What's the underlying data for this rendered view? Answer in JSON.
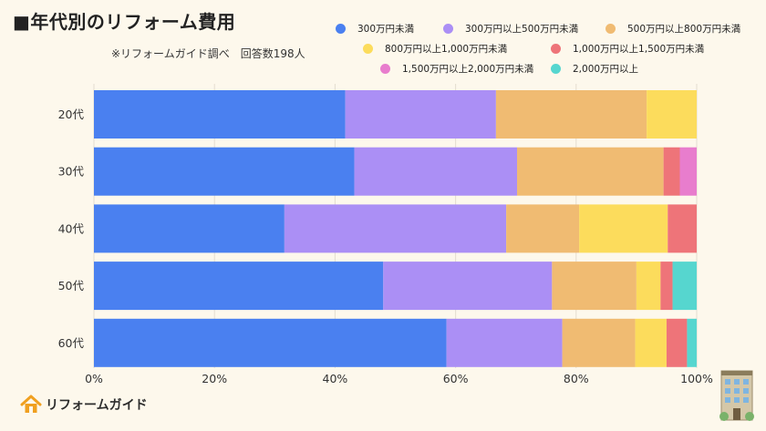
{
  "header": {
    "title": "■年代別のリフォーム費用",
    "subtitle": "※リフォームガイド調べ　回答数198人"
  },
  "brand": {
    "logo_text": "リフォームガイド"
  },
  "chart_data": {
    "type": "bar",
    "orientation": "horizontal",
    "stacked": "percent",
    "title": "■年代別のリフォーム費用",
    "subtitle": "※リフォームガイド調べ　回答数198人",
    "categories": [
      "20代",
      "30代",
      "40代",
      "50代",
      "60代"
    ],
    "xlim": [
      0,
      100
    ],
    "x_ticks": [
      "0%",
      "20%",
      "40%",
      "60%",
      "80%",
      "100%"
    ],
    "grid": "vertical",
    "legend_position": "top-right",
    "series": [
      {
        "name": "300万円未満",
        "color": "#4a80f0",
        "values": [
          41.7,
          43.2,
          31.6,
          48.0,
          58.5
        ]
      },
      {
        "name": "300万円以上500万円未満",
        "color": "#ab8ff5",
        "values": [
          25.0,
          27.0,
          36.8,
          28.0,
          19.2
        ]
      },
      {
        "name": "500万円以上800万円未満",
        "color": "#f0bb72",
        "values": [
          25.0,
          24.3,
          12.1,
          14.0,
          12.1
        ]
      },
      {
        "name": "800万円以上1,000万円未満",
        "color": "#fcdc5c",
        "values": [
          8.3,
          0,
          14.7,
          4.0,
          5.2
        ]
      },
      {
        "name": "1,000万円以上1,500万円未満",
        "color": "#ee7479",
        "values": [
          0,
          2.7,
          4.8,
          2.0,
          3.4
        ]
      },
      {
        "name": "1,500万円以上2,000万円未満",
        "color": "#e87dcd",
        "values": [
          0,
          2.8,
          0,
          0,
          0
        ]
      },
      {
        "name": "2,000万円以上",
        "color": "#56d6cf",
        "values": [
          0,
          0,
          0,
          4.0,
          1.6
        ]
      }
    ]
  }
}
